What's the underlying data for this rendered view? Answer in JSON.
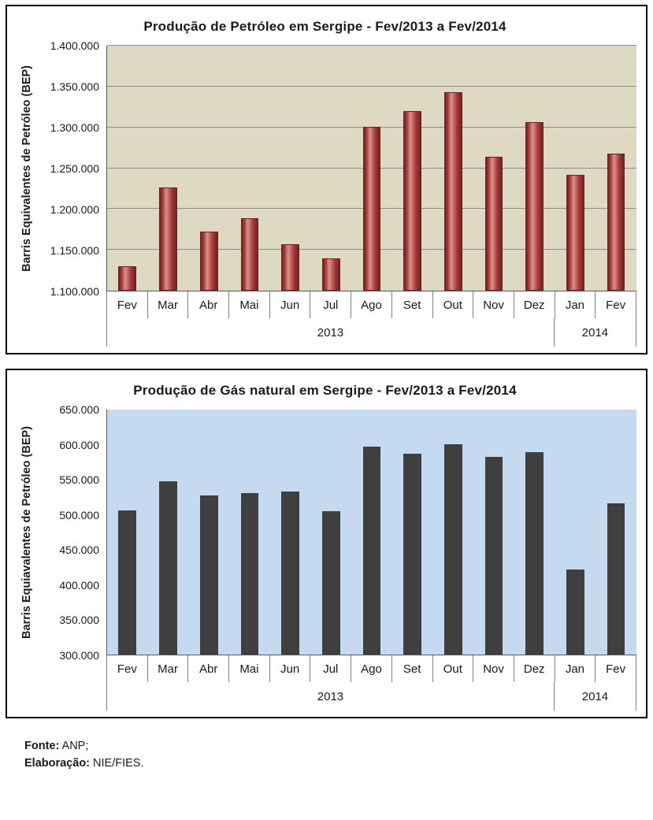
{
  "charts": [
    {
      "title": "Produção de Petróleo em Sergipe - Fev/2013 a Fev/2014",
      "ylabel": "Barris Equivalentes de Petróleo (BEP)",
      "chart_data": {
        "type": "bar",
        "categories": [
          "Fev",
          "Mar",
          "Abr",
          "Mai",
          "Jun",
          "Jul",
          "Ago",
          "Set",
          "Out",
          "Nov",
          "Dez",
          "Jan",
          "Fev"
        ],
        "values": [
          1130000,
          1226000,
          1172000,
          1189000,
          1157000,
          1140000,
          1301000,
          1320000,
          1343000,
          1264000,
          1306000,
          1242000,
          1268000
        ],
        "ylim": [
          1100000,
          1400000
        ],
        "ytick_step": 50000,
        "grid": true,
        "legend": "none",
        "year_groups": [
          {
            "label": "2013",
            "span": 11
          },
          {
            "label": "2014",
            "span": 2
          }
        ],
        "colors": {
          "plot_bg": "#DDD9C3",
          "bar": "#A33936",
          "bar_highlight": "#DD8F8C",
          "bar_border": "#6E2422",
          "grid": "#8C8C8C"
        }
      }
    },
    {
      "title": "Produção de Gás natural em Sergipe - Fev/2013 a Fev/2014",
      "ylabel": "Barris Equiavalentes de Petróleo (BEP)",
      "chart_data": {
        "type": "bar",
        "categories": [
          "Fev",
          "Mar",
          "Abr",
          "Mai",
          "Jun",
          "Jul",
          "Ago",
          "Set",
          "Out",
          "Nov",
          "Dez",
          "Jan",
          "Fev"
        ],
        "values": [
          506000,
          548000,
          527000,
          531000,
          533000,
          505000,
          597000,
          587000,
          600000,
          583000,
          589000,
          422000,
          516000
        ],
        "ylim": [
          300000,
          650000
        ],
        "ytick_step": 50000,
        "grid": false,
        "legend": "none",
        "year_groups": [
          {
            "label": "2013",
            "span": 11
          },
          {
            "label": "2014",
            "span": 2
          }
        ],
        "colors": {
          "plot_bg": "#C5D9F1",
          "bar": "#3F3F3F"
        }
      }
    }
  ],
  "footer": {
    "source_label": "Fonte:",
    "source_value": "ANP;",
    "elaboration_label": "Elaboração:",
    "elaboration_value": "NIE/FIES."
  }
}
